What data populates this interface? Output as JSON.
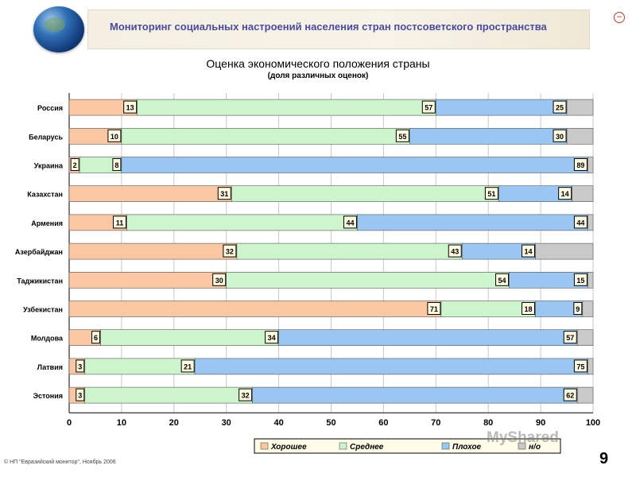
{
  "header": {
    "title": "Мониторинг социальных настроений населения стран постсоветского пространства"
  },
  "footer": {
    "copyright": "© НП \"Евразийский монитор\", Ноябрь 2006",
    "page_number": "9",
    "watermark": "MyShared"
  },
  "colors": {
    "good": "#f9c7a1",
    "medium": "#ccf5cc",
    "bad": "#99c6f2",
    "na": "#c9c9c9"
  },
  "chart_data": {
    "type": "bar",
    "orientation": "horizontal",
    "stacked": true,
    "title": "Оценка экономического положения страны",
    "subtitle": "(доля различных оценок)",
    "categories": [
      "Россия",
      "Беларусь",
      "Украина",
      "Казахстан",
      "Армения",
      "Азербайджан",
      "Таджикистан",
      "Узбекистан",
      "Молдова",
      "Латвия",
      "Эстония"
    ],
    "series": [
      {
        "name": "Хорошее",
        "color": "#f9c7a1",
        "values": [
          13,
          10,
          2,
          31,
          11,
          32,
          30,
          71,
          6,
          3,
          3
        ]
      },
      {
        "name": "Среднее",
        "color": "#ccf5cc",
        "values": [
          57,
          55,
          8,
          51,
          44,
          43,
          54,
          18,
          34,
          21,
          32
        ]
      },
      {
        "name": "Плохое",
        "color": "#99c6f2",
        "values": [
          25,
          30,
          89,
          14,
          44,
          14,
          15,
          9,
          57,
          75,
          62
        ]
      },
      {
        "name": "н/о",
        "color": "#c9c9c9",
        "values": [
          5,
          6,
          1,
          4,
          2,
          11,
          1,
          2,
          3,
          1,
          3
        ]
      }
    ],
    "xlim": [
      0,
      100
    ],
    "xticks": [
      0,
      10,
      20,
      30,
      40,
      50,
      60,
      70,
      80,
      90,
      100
    ],
    "legend_position": "bottom"
  }
}
